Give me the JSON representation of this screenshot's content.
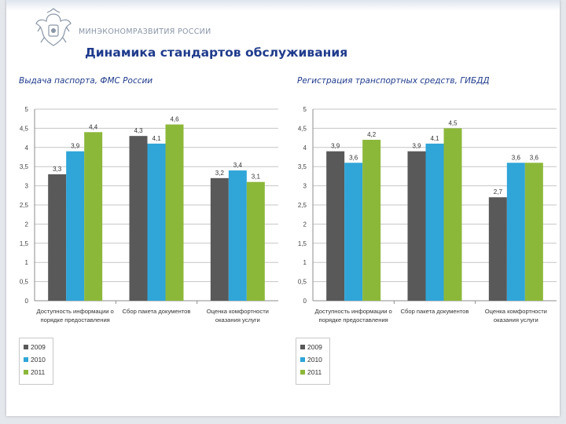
{
  "header": {
    "ministry": "МИНЭКОНОМРАЗВИТИЯ РОССИИ",
    "title": "Динамика стандартов обслуживания"
  },
  "colors": {
    "2009": "#595959",
    "2010": "#2fa5d8",
    "2011": "#8cb83a",
    "title": "#1f3b8c"
  },
  "chart_data": [
    {
      "type": "bar",
      "title": "Выдача паспорта, ФМС России",
      "categories": [
        [
          "Доступность информации о",
          "порядке предоставления"
        ],
        [
          "Сбор пакета документов"
        ],
        [
          "Оценка комфортности",
          "оказания услуги"
        ]
      ],
      "series": [
        {
          "name": "2009",
          "values": [
            3.3,
            4.3,
            3.2
          ],
          "labels": [
            "3,3",
            "4,3",
            "3,2"
          ]
        },
        {
          "name": "2010",
          "values": [
            3.9,
            4.1,
            3.4
          ],
          "labels": [
            "3,9",
            "4,1",
            "3,4"
          ]
        },
        {
          "name": "2011",
          "values": [
            4.4,
            4.6,
            3.1
          ],
          "labels": [
            "4,4",
            "4,6",
            "3,1"
          ]
        }
      ],
      "ylim": [
        0,
        5
      ],
      "yticks": [
        "0",
        "0,5",
        "1",
        "1,5",
        "2",
        "2,5",
        "3",
        "3,5",
        "4",
        "4,5",
        "5"
      ],
      "grid": true,
      "legend": "bottom-left"
    },
    {
      "type": "bar",
      "title": "Регистрация транспортных средств, ГИБДД",
      "categories": [
        [
          "Доступность информации о",
          "порядке предоставления"
        ],
        [
          "Сбор пакета документов"
        ],
        [
          "Оценка комфортности",
          "оказания услуги"
        ]
      ],
      "series": [
        {
          "name": "2009",
          "values": [
            3.9,
            3.9,
            2.7
          ],
          "labels": [
            "3,9",
            "3,9",
            "2,7"
          ]
        },
        {
          "name": "2010",
          "values": [
            3.6,
            4.1,
            3.6
          ],
          "labels": [
            "3,6",
            "4,1",
            "3,6"
          ]
        },
        {
          "name": "2011",
          "values": [
            4.2,
            4.5,
            3.6
          ],
          "labels": [
            "4,2",
            "4,5",
            "3,6"
          ]
        }
      ],
      "ylim": [
        0,
        5
      ],
      "yticks": [
        "0",
        "0,5",
        "1",
        "1,5",
        "2",
        "2,5",
        "3",
        "3,5",
        "4",
        "4,5",
        "5"
      ],
      "grid": true,
      "legend": "bottom-left"
    }
  ]
}
